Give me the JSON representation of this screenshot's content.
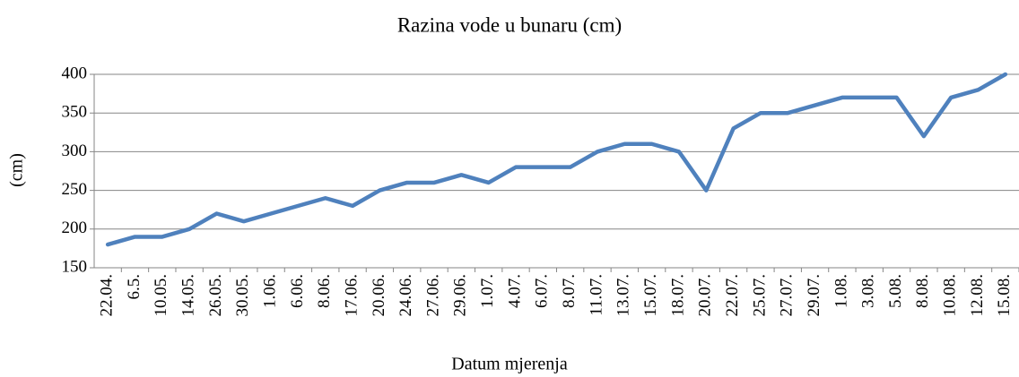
{
  "chart_data": {
    "type": "line",
    "title": "Razina vode u bunaru (cm)",
    "x_label": "Datum mjerenja",
    "y_label": "(cm)",
    "categories": [
      "22.04.",
      "6.5.",
      "10.05.",
      "14.05.",
      "26.05.",
      "30.05.",
      "1.06.",
      "6.06.",
      "8.06.",
      "17.06.",
      "20.06.",
      "24.06.",
      "27.06.",
      "29.06.",
      "1.07.",
      "4.07.",
      "6.07.",
      "8.07.",
      "11.07.",
      "13.07.",
      "15.07.",
      "18.07.",
      "20.07.",
      "22.07.",
      "25.07.",
      "27.07.",
      "29.07.",
      "1.08.",
      "3.08.",
      "5.08.",
      "8.08.",
      "10.08.",
      "12.08.",
      "15.08."
    ],
    "values": [
      180,
      190,
      190,
      200,
      220,
      210,
      220,
      230,
      240,
      230,
      250,
      260,
      260,
      270,
      260,
      280,
      280,
      280,
      300,
      310,
      310,
      300,
      250,
      330,
      350,
      350,
      360,
      370,
      370,
      370,
      320,
      370,
      380,
      400
    ],
    "color": "#4f81bd",
    "ylim": [
      150,
      400
    ],
    "yticks": [
      150,
      200,
      250,
      300,
      350,
      400
    ],
    "grid": true
  }
}
